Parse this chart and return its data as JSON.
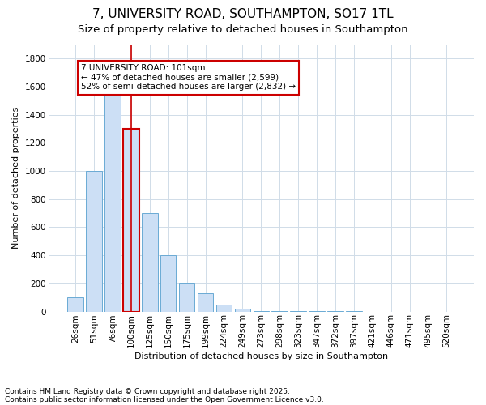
{
  "title": "7, UNIVERSITY ROAD, SOUTHAMPTON, SO17 1TL",
  "subtitle": "Size of property relative to detached houses in Southampton",
  "xlabel": "Distribution of detached houses by size in Southampton",
  "ylabel": "Number of detached properties",
  "categories": [
    "26sqm",
    "51sqm",
    "76sqm",
    "100sqm",
    "125sqm",
    "150sqm",
    "175sqm",
    "199sqm",
    "224sqm",
    "249sqm",
    "273sqm",
    "298sqm",
    "323sqm",
    "347sqm",
    "372sqm",
    "397sqm",
    "421sqm",
    "446sqm",
    "471sqm",
    "495sqm",
    "520sqm"
  ],
  "values": [
    100,
    1000,
    1700,
    1300,
    700,
    400,
    200,
    130,
    50,
    20,
    5,
    5,
    2,
    2,
    1,
    1,
    0,
    0,
    0,
    0,
    0
  ],
  "bar_color": "#ccdff5",
  "bar_edge_color": "#6aaad4",
  "highlight_bar_index": 3,
  "highlight_bar_edge_color": "#cc0000",
  "annotation_text": "7 UNIVERSITY ROAD: 101sqm\n← 47% of detached houses are smaller (2,599)\n52% of semi-detached houses are larger (2,832) →",
  "annotation_box_color": "#ffffff",
  "annotation_box_edge_color": "#cc0000",
  "ylim": [
    0,
    1900
  ],
  "yticks": [
    0,
    200,
    400,
    600,
    800,
    1000,
    1200,
    1400,
    1600,
    1800
  ],
  "footnote1": "Contains HM Land Registry data © Crown copyright and database right 2025.",
  "footnote2": "Contains public sector information licensed under the Open Government Licence v3.0.",
  "bg_color": "#ffffff",
  "grid_color": "#d0dce8",
  "title_fontsize": 11,
  "subtitle_fontsize": 9.5,
  "label_fontsize": 8,
  "tick_fontsize": 7.5,
  "annotation_fontsize": 7.5
}
